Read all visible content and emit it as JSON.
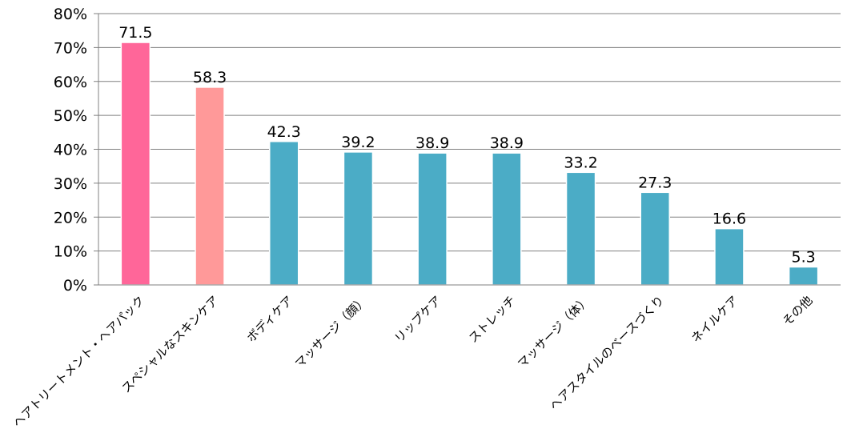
{
  "chart_data": {
    "type": "bar",
    "title": "",
    "xlabel": "",
    "ylabel": "",
    "ylim": [
      0,
      80
    ],
    "ytick_labels": [
      "0%",
      "10%",
      "20%",
      "30%",
      "40%",
      "50%",
      "60%",
      "70%",
      "80%"
    ],
    "grid": true,
    "categories": [
      "ヘアトリートメント・ヘアパック",
      "スペシャルなスキンケア",
      "ボディケア",
      "マッサージ（顔）",
      "リップケア",
      "ストレッチ",
      "マッサージ（体）",
      "ヘアスタイルのベースづくり",
      "ネイルケア",
      "その他"
    ],
    "values": [
      71.5,
      58.3,
      42.3,
      39.2,
      38.9,
      38.9,
      33.2,
      27.3,
      16.6,
      5.3
    ],
    "data_labels": [
      "71.5",
      "58.3",
      "42.3",
      "39.2",
      "38.9",
      "38.9",
      "33.2",
      "27.3",
      "16.6",
      "5.3"
    ],
    "bar_colors": [
      "#ff6699",
      "#ff9999",
      "#4bacc6",
      "#4bacc6",
      "#4bacc6",
      "#4bacc6",
      "#4bacc6",
      "#4bacc6",
      "#4bacc6",
      "#4bacc6"
    ],
    "grid_color": "#808080",
    "axis_color": "#808080"
  }
}
